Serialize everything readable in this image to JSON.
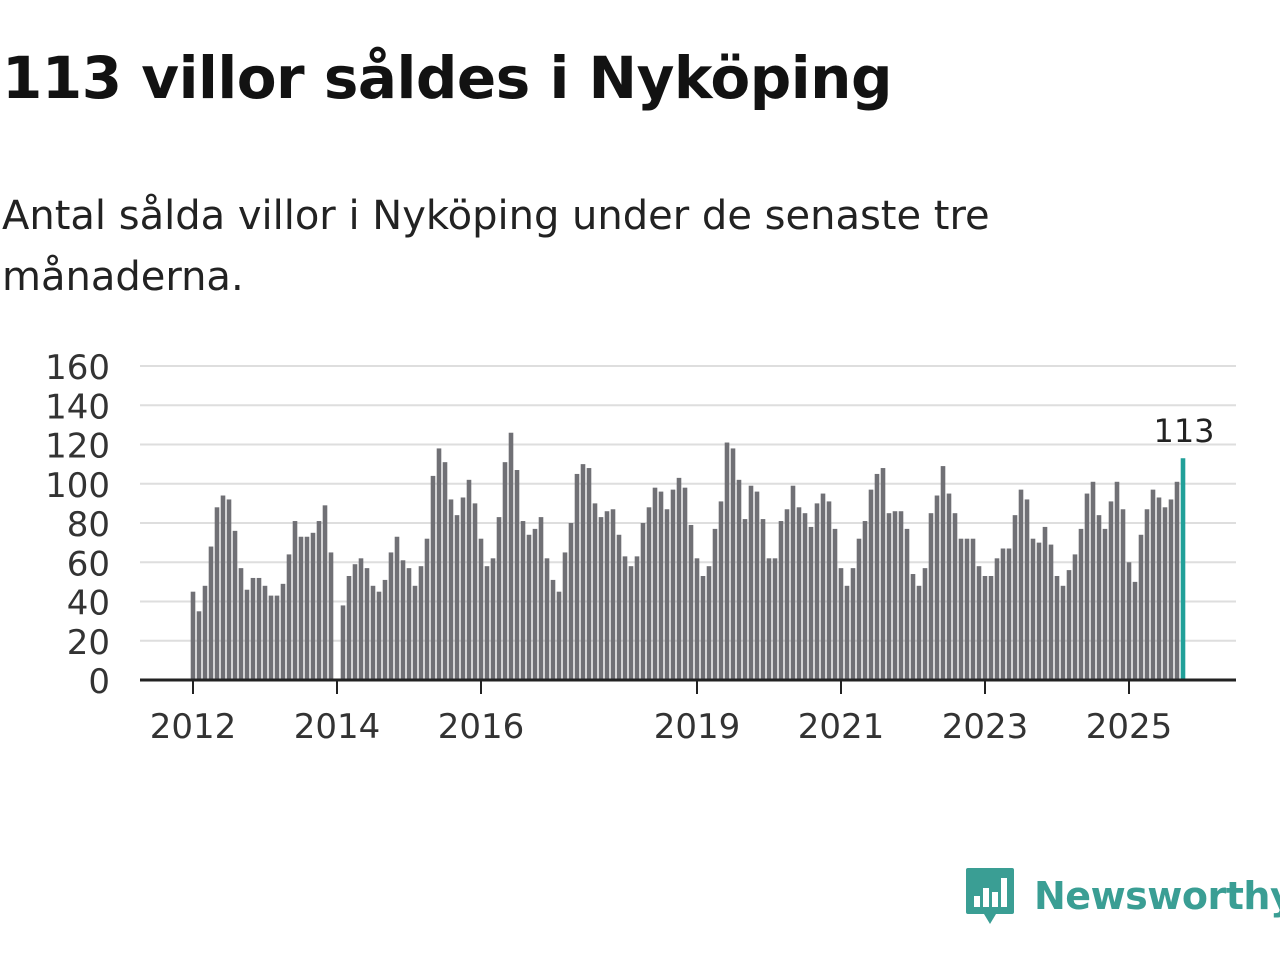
{
  "header": {
    "title": "113 villor såldes i Nyköping",
    "subtitle": "Antal sålda villor i Nyköping under de senaste tre månaderna."
  },
  "brand": {
    "name": "Newsworthy",
    "icon": "newsworthy-logo-icon",
    "color": "#3a9e94"
  },
  "colors": {
    "bar": "#707075",
    "highlight": "#21a099",
    "grid": "#dedede",
    "axis": "#222222"
  },
  "chart_data": {
    "type": "bar",
    "title": "113 villor såldes i Nyköping",
    "ylabel": "",
    "xlabel": "",
    "ylim": [
      0,
      160
    ],
    "yticks": [
      0,
      20,
      40,
      60,
      80,
      100,
      120,
      140,
      160
    ],
    "xticks": [
      "2012",
      "2014",
      "2016",
      "2019",
      "2021",
      "2023",
      "2025"
    ],
    "start": "2012-01",
    "highlight_label": "113",
    "values": [
      45,
      35,
      48,
      68,
      88,
      94,
      92,
      76,
      57,
      46,
      52,
      52,
      48,
      43,
      43,
      49,
      64,
      81,
      73,
      73,
      75,
      81,
      89,
      65,
      0,
      38,
      53,
      59,
      62,
      57,
      48,
      45,
      51,
      65,
      73,
      61,
      57,
      48,
      58,
      72,
      104,
      118,
      111,
      92,
      84,
      93,
      102,
      90,
      72,
      58,
      62,
      83,
      111,
      126,
      107,
      81,
      74,
      77,
      83,
      62,
      51,
      45,
      65,
      80,
      105,
      110,
      108,
      90,
      83,
      86,
      87,
      74,
      63,
      58,
      63,
      80,
      88,
      98,
      96,
      87,
      97,
      103,
      98,
      79,
      62,
      53,
      58,
      77,
      91,
      121,
      118,
      102,
      82,
      99,
      96,
      82,
      62,
      62,
      81,
      87,
      99,
      88,
      85,
      78,
      90,
      95,
      91,
      77,
      57,
      48,
      57,
      72,
      81,
      97,
      105,
      108,
      85,
      86,
      86,
      77,
      54,
      48,
      57,
      85,
      94,
      109,
      95,
      85,
      72,
      72,
      72,
      58,
      53,
      53,
      62,
      67,
      67,
      84,
      97,
      92,
      72,
      70,
      78,
      69,
      53,
      48,
      56,
      64,
      77,
      95,
      101,
      84,
      77,
      91,
      101,
      87,
      60,
      50,
      74,
      87,
      97,
      93,
      88,
      92,
      101,
      113
    ]
  }
}
